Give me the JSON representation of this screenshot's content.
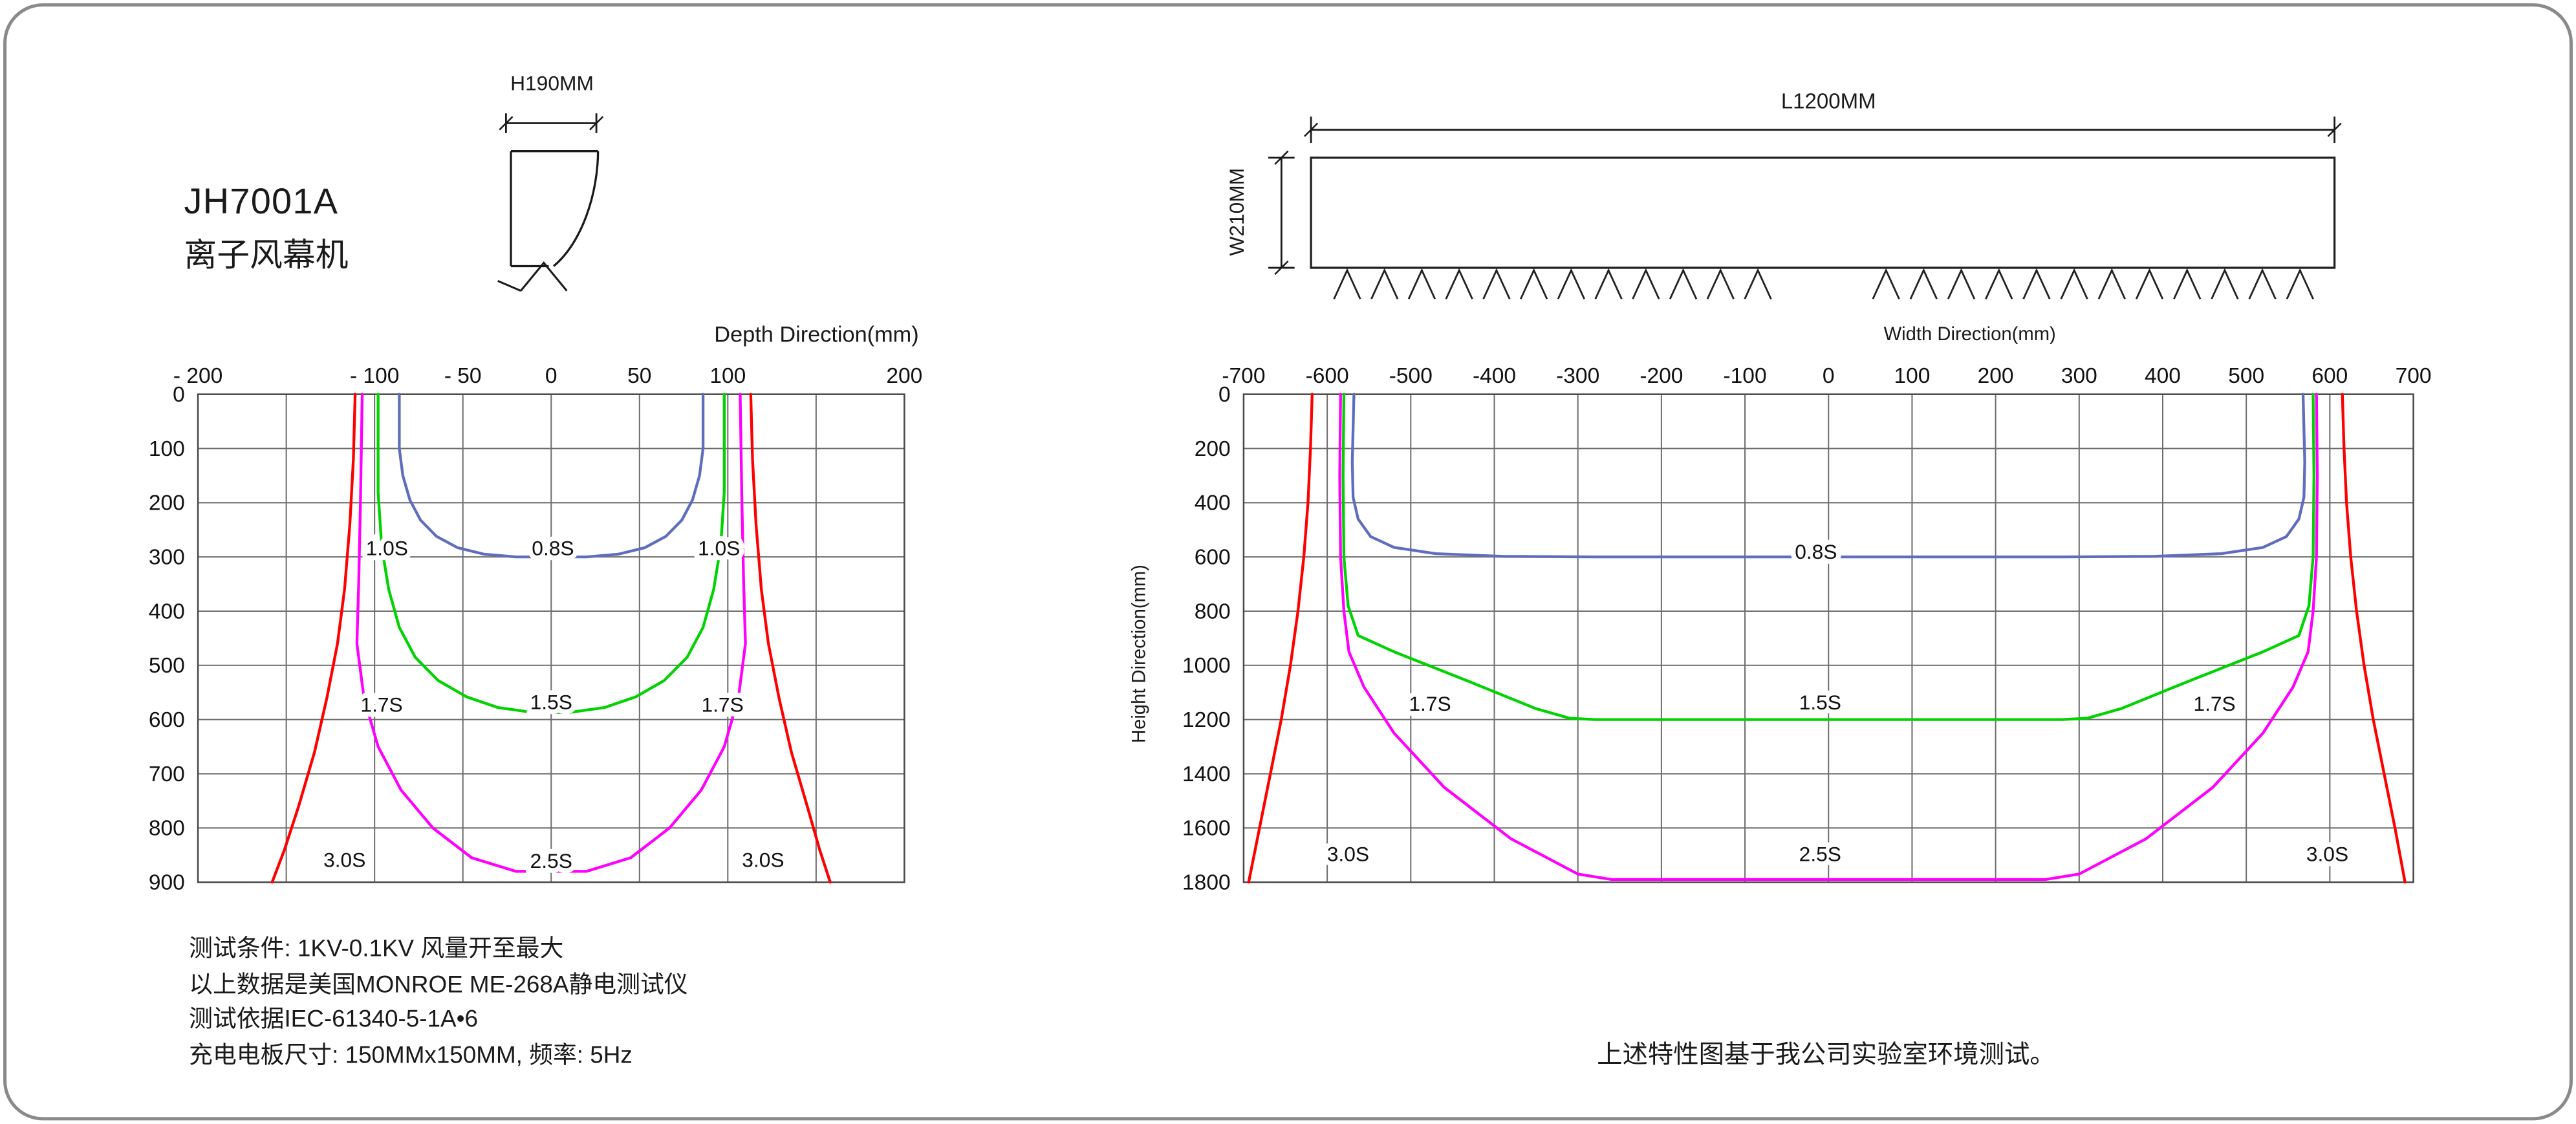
{
  "header": {
    "model": "JH7001A",
    "product_name": "离子风幕机"
  },
  "diagrams": {
    "side_profile": {
      "height_dim": "H190MM"
    },
    "front_view": {
      "length_dim": "L1200MM",
      "width_dim": "W210MM"
    }
  },
  "notes": {
    "lines": [
      "测试条件:  1KV-0.1KV  风量开至最大",
      "以上数据是美国MONROE ME-268A静电测试仪",
      "测试依据IEC-61340-5-1A•6",
      "充电电板尺寸:  150MMx150MM, 频率:  5Hz"
    ],
    "footnote": "上述特性图基于我公司实验室环境测试。"
  },
  "colors": {
    "red": "#ff0000",
    "magenta": "#ff00ff",
    "green": "#00d300",
    "blue": "#5f6dbe",
    "grid": "#6e6e6e"
  },
  "chart_data": [
    {
      "type": "line",
      "title": "Ion decay contours vs depth",
      "xlabel": "Depth Direction(mm)",
      "ylabel": "",
      "x_axis": {
        "min": -200,
        "max": 200,
        "grid_step": 50,
        "ticks": [
          {
            "v": -200,
            "t": "- 200"
          },
          {
            "v": -100,
            "t": "- 100"
          },
          {
            "v": -50,
            "t": "- 50"
          },
          {
            "v": 0,
            "t": "0"
          },
          {
            "v": 50,
            "t": "50"
          },
          {
            "v": 100,
            "t": "100"
          },
          {
            "v": 200,
            "t": "200"
          }
        ]
      },
      "y_axis": {
        "min": 0,
        "max": 900,
        "grid_step": 100,
        "ticks": [
          {
            "v": 0,
            "t": "0"
          },
          {
            "v": 100,
            "t": "100"
          },
          {
            "v": 200,
            "t": "200"
          },
          {
            "v": 300,
            "t": "300"
          },
          {
            "v": 400,
            "t": "400"
          },
          {
            "v": 500,
            "t": "500"
          },
          {
            "v": 600,
            "t": "600"
          },
          {
            "v": 700,
            "t": "700"
          },
          {
            "v": 800,
            "t": "800"
          },
          {
            "v": 900,
            "t": "900"
          }
        ]
      },
      "series": [
        {
          "name": "0.8S",
          "color": "#5f6dbe",
          "points": [
            [
              -86,
              0
            ],
            [
              -86,
              100
            ],
            [
              -84,
              150
            ],
            [
              -80,
              195
            ],
            [
              -74,
              232
            ],
            [
              -65,
              262
            ],
            [
              -53,
              283
            ],
            [
              -38,
              295
            ],
            [
              -20,
              300
            ],
            [
              20,
              300
            ],
            [
              38,
              295
            ],
            [
              53,
              283
            ],
            [
              65,
              262
            ],
            [
              74,
              232
            ],
            [
              80,
              195
            ],
            [
              84,
              150
            ],
            [
              86,
              100
            ],
            [
              86,
              0
            ]
          ]
        },
        {
          "name": "1.5S",
          "color": "#00d300",
          "points": [
            [
              -98,
              0
            ],
            [
              -98,
              180
            ],
            [
              -96,
              280
            ],
            [
              -92,
              360
            ],
            [
              -86,
              430
            ],
            [
              -77,
              485
            ],
            [
              -64,
              528
            ],
            [
              -48,
              558
            ],
            [
              -30,
              578
            ],
            [
              -10,
              587
            ],
            [
              10,
              587
            ],
            [
              30,
              578
            ],
            [
              48,
              558
            ],
            [
              64,
              528
            ],
            [
              77,
              485
            ],
            [
              86,
              430
            ],
            [
              92,
              360
            ],
            [
              96,
              280
            ],
            [
              98,
              180
            ],
            [
              98,
              0
            ]
          ]
        },
        {
          "name": "2.5S",
          "color": "#ff00ff",
          "points": [
            [
              -107,
              0
            ],
            [
              -108,
              200
            ],
            [
              -109,
              350
            ],
            [
              -110,
              460
            ],
            [
              -106,
              560
            ],
            [
              -98,
              650
            ],
            [
              -85,
              730
            ],
            [
              -67,
              800
            ],
            [
              -45,
              855
            ],
            [
              -20,
              880
            ],
            [
              20,
              880
            ],
            [
              45,
              855
            ],
            [
              67,
              800
            ],
            [
              85,
              730
            ],
            [
              98,
              650
            ],
            [
              106,
              560
            ],
            [
              110,
              460
            ],
            [
              109,
              350
            ],
            [
              108,
              200
            ],
            [
              107,
              0
            ]
          ]
        },
        {
          "name": "3.0S",
          "color": "#ff0000",
          "points": [
            [
              -111,
              0
            ],
            [
              -112,
              120
            ],
            [
              -114,
              240
            ],
            [
              -117,
              360
            ],
            [
              -121,
              460
            ],
            [
              -127,
              560
            ],
            [
              -134,
              660
            ],
            [
              -143,
              760
            ],
            [
              -151,
              840
            ],
            [
              -158,
              900
            ]
          ]
        },
        {
          "name": "3.0S",
          "color": "#ff0000",
          "points": [
            [
              113,
              0
            ],
            [
              114,
              120
            ],
            [
              116,
              240
            ],
            [
              119,
              360
            ],
            [
              123,
              460
            ],
            [
              129,
              560
            ],
            [
              136,
              660
            ],
            [
              145,
              760
            ],
            [
              152,
              840
            ],
            [
              158,
              900
            ]
          ]
        }
      ],
      "labels": [
        {
          "t": "1.0S",
          "x": -93,
          "y": 283
        },
        {
          "t": "0.8S",
          "x": 1,
          "y": 283
        },
        {
          "t": "1.0S",
          "x": 95,
          "y": 283
        },
        {
          "t": "1.7S",
          "x": -96,
          "y": 572
        },
        {
          "t": "1.5S",
          "x": 0,
          "y": 567
        },
        {
          "t": "1.7S",
          "x": 97,
          "y": 572
        },
        {
          "t": "3.0S",
          "x": -117,
          "y": 858
        },
        {
          "t": "2.5S",
          "x": 0,
          "y": 860
        },
        {
          "t": "3.0S",
          "x": 120,
          "y": 858
        }
      ]
    },
    {
      "type": "line",
      "title": "Ion decay contours vs width",
      "xlabel": "Width Direction(mm)",
      "ylabel": "Height Direction(mm)",
      "x_axis": {
        "min": -700,
        "max": 700,
        "grid_step": 100,
        "ticks": [
          {
            "v": -700,
            "t": "-700"
          },
          {
            "v": -600,
            "t": "-600"
          },
          {
            "v": -500,
            "t": "-500"
          },
          {
            "v": -400,
            "t": "-400"
          },
          {
            "v": -300,
            "t": "-300"
          },
          {
            "v": -200,
            "t": "-200"
          },
          {
            "v": -100,
            "t": "-100"
          },
          {
            "v": 0,
            "t": "0"
          },
          {
            "v": 100,
            "t": "100"
          },
          {
            "v": 200,
            "t": "200"
          },
          {
            "v": 300,
            "t": "300"
          },
          {
            "v": 400,
            "t": "400"
          },
          {
            "v": 500,
            "t": "500"
          },
          {
            "v": 600,
            "t": "600"
          },
          {
            "v": 700,
            "t": "700"
          }
        ]
      },
      "y_axis": {
        "min": 0,
        "max": 1800,
        "grid_step": 200,
        "ticks": [
          {
            "v": 0,
            "t": "0"
          },
          {
            "v": 200,
            "t": "200"
          },
          {
            "v": 400,
            "t": "400"
          },
          {
            "v": 600,
            "t": "600"
          },
          {
            "v": 800,
            "t": "800"
          },
          {
            "v": 1000,
            "t": "1000"
          },
          {
            "v": 1200,
            "t": "1200"
          },
          {
            "v": 1400,
            "t": "1400"
          },
          {
            "v": 1600,
            "t": "1600"
          },
          {
            "v": 1800,
            "t": "1800"
          }
        ]
      },
      "series": [
        {
          "name": "0.8S",
          "color": "#5f6dbe",
          "points": [
            [
              -568,
              0
            ],
            [
              -570,
              250
            ],
            [
              -569,
              380
            ],
            [
              -563,
              460
            ],
            [
              -548,
              525
            ],
            [
              -520,
              565
            ],
            [
              -470,
              588
            ],
            [
              -390,
              598
            ],
            [
              -280,
              600
            ],
            [
              280,
              600
            ],
            [
              390,
              598
            ],
            [
              470,
              588
            ],
            [
              520,
              565
            ],
            [
              548,
              525
            ],
            [
              563,
              460
            ],
            [
              569,
              380
            ],
            [
              570,
              250
            ],
            [
              568,
              0
            ]
          ]
        },
        {
          "name": "1.5S",
          "color": "#00d300",
          "points": [
            [
              -580,
              0
            ],
            [
              -581,
              300
            ],
            [
              -580,
              600
            ],
            [
              -575,
              780
            ],
            [
              -563,
              890
            ],
            [
              -520,
              950
            ],
            [
              -430,
              1060
            ],
            [
              -350,
              1160
            ],
            [
              -310,
              1195
            ],
            [
              -280,
              1200
            ],
            [
              280,
              1200
            ],
            [
              310,
              1195
            ],
            [
              350,
              1160
            ],
            [
              430,
              1060
            ],
            [
              520,
              950
            ],
            [
              563,
              890
            ],
            [
              575,
              780
            ],
            [
              580,
              600
            ],
            [
              581,
              300
            ],
            [
              580,
              0
            ]
          ]
        },
        {
          "name": "2.5S",
          "color": "#ff00ff",
          "points": [
            [
              -584,
              0
            ],
            [
              -585,
              300
            ],
            [
              -584,
              600
            ],
            [
              -580,
              800
            ],
            [
              -574,
              950
            ],
            [
              -556,
              1080
            ],
            [
              -520,
              1250
            ],
            [
              -460,
              1450
            ],
            [
              -380,
              1640
            ],
            [
              -300,
              1770
            ],
            [
              -260,
              1790
            ],
            [
              260,
              1790
            ],
            [
              300,
              1770
            ],
            [
              380,
              1640
            ],
            [
              460,
              1450
            ],
            [
              520,
              1250
            ],
            [
              556,
              1080
            ],
            [
              574,
              950
            ],
            [
              580,
              800
            ],
            [
              584,
              600
            ],
            [
              585,
              300
            ],
            [
              584,
              0
            ]
          ]
        },
        {
          "name": "3.0S",
          "color": "#ff0000",
          "points": [
            [
              -618,
              0
            ],
            [
              -620,
              200
            ],
            [
              -623,
              400
            ],
            [
              -628,
              600
            ],
            [
              -635,
              800
            ],
            [
              -644,
              1000
            ],
            [
              -655,
              1200
            ],
            [
              -668,
              1400
            ],
            [
              -681,
              1600
            ],
            [
              -694,
              1800
            ]
          ]
        },
        {
          "name": "3.0S",
          "color": "#ff0000",
          "points": [
            [
              615,
              0
            ],
            [
              617,
              200
            ],
            [
              620,
              400
            ],
            [
              625,
              600
            ],
            [
              632,
              800
            ],
            [
              641,
              1000
            ],
            [
              652,
              1200
            ],
            [
              665,
              1400
            ],
            [
              678,
              1600
            ],
            [
              690,
              1800
            ]
          ]
        }
      ],
      "labels": [
        {
          "t": "0.8S",
          "x": -15,
          "y": 580
        },
        {
          "t": "1.7S",
          "x": -477,
          "y": 1140
        },
        {
          "t": "1.5S",
          "x": -10,
          "y": 1135
        },
        {
          "t": "1.7S",
          "x": 462,
          "y": 1140
        },
        {
          "t": "3.0S",
          "x": -575,
          "y": 1695
        },
        {
          "t": "2.5S",
          "x": -10,
          "y": 1695
        },
        {
          "t": "3.0S",
          "x": 597,
          "y": 1695
        }
      ]
    }
  ]
}
